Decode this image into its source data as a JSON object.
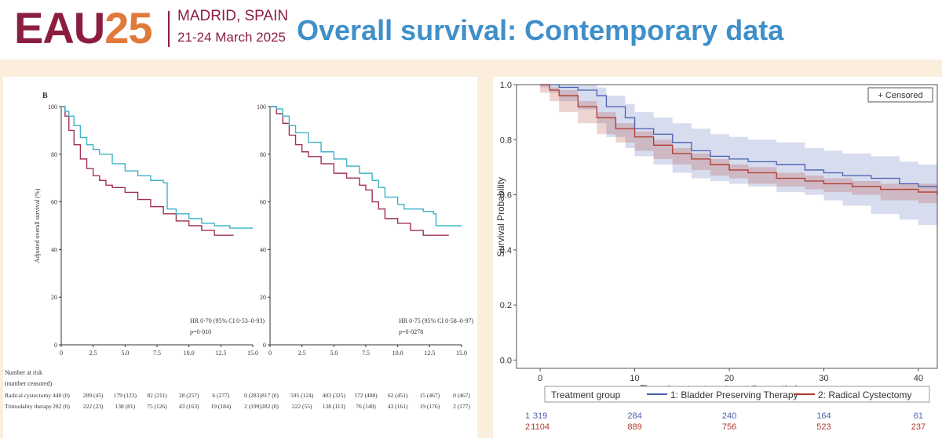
{
  "header": {
    "logo_prefix": "EAU",
    "logo_year": "25",
    "city": "MADRID, SPAIN",
    "dates": "21-24 March 2025",
    "title": "Overall survival: Contemporary data"
  },
  "colors": {
    "eau_maroon": "#8b1e3f",
    "eau_orange": "#e07a3a",
    "title_blue": "#3f8fc9",
    "background_beige": "#fbeedd",
    "series_teal": "#3fb3c8",
    "series_maroon": "#a0324f",
    "series_blue": "#4a5fb0",
    "series_red": "#b03a2e"
  },
  "chart_data": [
    {
      "type": "line",
      "panel_label": "B",
      "ylabel": "Adjusted overall survival (%)",
      "xlim": [
        0,
        15.0
      ],
      "ylim": [
        0,
        100
      ],
      "xticks": [
        "0",
        "2.5",
        "5.0",
        "7.5",
        "10.0",
        "12.5",
        "15.0"
      ],
      "yticks": [
        "0",
        "20",
        "40",
        "60",
        "80",
        "100"
      ],
      "annotation_hr": "HR 0·70 (95% CI 0·53–0·93)",
      "annotation_p": "p=0·010",
      "series": [
        {
          "name": "Radical cystectomy",
          "color": "#a0324f",
          "x": [
            0,
            0.3,
            0.6,
            1.0,
            1.5,
            2.0,
            2.5,
            3.0,
            3.5,
            4.0,
            5.0,
            6.0,
            7.0,
            8.0,
            9.0,
            10.0,
            11.0,
            12.0,
            13.5
          ],
          "y": [
            100,
            96,
            90,
            84,
            78,
            74,
            71,
            69,
            67,
            66,
            64,
            61,
            58,
            55,
            52,
            50,
            48,
            46,
            46
          ]
        },
        {
          "name": "Trimodality therapy",
          "color": "#3fb3c8",
          "x": [
            0,
            0.3,
            0.6,
            1.0,
            1.5,
            2.0,
            2.5,
            3.0,
            4.0,
            5.0,
            6.0,
            7.0,
            8.0,
            8.3,
            9.0,
            10.0,
            11.0,
            12.0,
            13.0,
            13.2,
            15.0
          ],
          "y": [
            100,
            98,
            96,
            92,
            87,
            84,
            82,
            80,
            76,
            73,
            71,
            69,
            68,
            57,
            55,
            53,
            51,
            50,
            50,
            49,
            49
          ]
        }
      ],
      "risk_table": {
        "header": "Number at risk",
        "subheader": "(number censored)",
        "rows": [
          {
            "label": "Radical cystectomy",
            "values": [
              "440 (0)",
              "289 (45)",
              "179 (123)",
              "82 (211)",
              "28 (257)",
              "6 (277)",
              "0 (283)"
            ]
          },
          {
            "label": "Trimodality therapy",
            "values": [
              "282 (0)",
              "222 (23)",
              "138 (81)",
              "75 (126)",
              "43 (163)",
              "19 (184)",
              "2 (199)"
            ]
          }
        ]
      }
    },
    {
      "type": "line",
      "xlim": [
        0,
        15.0
      ],
      "ylim": [
        0,
        100
      ],
      "xticks": [
        "0",
        "2.5",
        "5.0",
        "7.5",
        "10.0",
        "12.5",
        "15.0"
      ],
      "yticks": [
        "0",
        "20",
        "40",
        "60",
        "80",
        "100"
      ],
      "annotation_hr": "HR 0·75 (95% CI 0·58–0·97)",
      "annotation_p": "p=0·0278",
      "series": [
        {
          "name": "Radical cystectomy",
          "color": "#a0324f",
          "x": [
            0,
            0.5,
            1.0,
            1.5,
            2.0,
            2.5,
            3.0,
            4.0,
            5.0,
            6.0,
            7.0,
            7.5,
            8.0,
            8.5,
            9.0,
            10.0,
            11.0,
            12.0,
            13.0,
            14.0
          ],
          "y": [
            100,
            97,
            93,
            88,
            84,
            81,
            79,
            76,
            72,
            70,
            67,
            65,
            60,
            57,
            53,
            51,
            48,
            46,
            46,
            46
          ]
        },
        {
          "name": "Trimodality therapy",
          "color": "#3fb3c8",
          "x": [
            0,
            0.5,
            1.0,
            1.5,
            2.0,
            3.0,
            4.0,
            5.0,
            6.0,
            7.0,
            8.0,
            8.5,
            9.0,
            10.0,
            10.5,
            11.0,
            12.0,
            12.8,
            13.0,
            15.0
          ],
          "y": [
            100,
            99,
            96,
            92,
            89,
            85,
            81,
            78,
            75,
            72,
            69,
            66,
            62,
            59,
            57,
            57,
            56,
            55,
            50,
            50
          ]
        }
      ],
      "risk_table": {
        "rows": [
          {
            "label": "Radical cystectomy",
            "values": [
              "817 (0)",
              "595 (124)",
              "403 (325)",
              "172 (408)",
              "62 (451)",
              "15 (467)",
              "0 (467)"
            ]
          },
          {
            "label": "Trimodality therapy",
            "values": [
              "282 (0)",
              "222 (55)",
              "138 (113)",
              "76 (140)",
              "43 (161)",
              "19 (176)",
              "2 (177)"
            ]
          }
        ]
      }
    },
    {
      "type": "line",
      "xlabel": "Time since treatment start (in months)",
      "ylabel": "Survival Probability",
      "xlim": [
        -2.5,
        42
      ],
      "ylim": [
        -0.03,
        1.0
      ],
      "xticks": [
        "0",
        "10",
        "20",
        "30",
        "40"
      ],
      "yticks": [
        "0.0",
        "0.2",
        "0.4",
        "0.6",
        "0.8",
        "1.0"
      ],
      "legend_censored": "+ Censored",
      "legend_title": "Treatment group",
      "series": [
        {
          "name": "1: Bladder Preserving Therapy",
          "color": "#4a5fb0",
          "x": [
            0,
            1,
            2,
            4,
            6,
            7,
            9,
            10,
            12,
            14,
            16,
            18,
            20,
            22,
            25,
            28,
            30,
            32,
            35,
            38,
            40,
            42
          ],
          "y": [
            1.0,
            1.0,
            0.99,
            0.98,
            0.96,
            0.92,
            0.88,
            0.84,
            0.82,
            0.79,
            0.76,
            0.74,
            0.73,
            0.72,
            0.71,
            0.69,
            0.68,
            0.67,
            0.66,
            0.64,
            0.63,
            0.6
          ],
          "lower": [
            1.0,
            0.99,
            0.97,
            0.94,
            0.91,
            0.86,
            0.81,
            0.77,
            0.74,
            0.71,
            0.68,
            0.66,
            0.65,
            0.64,
            0.63,
            0.61,
            0.6,
            0.58,
            0.56,
            0.53,
            0.51,
            0.49
          ],
          "upper": [
            1.0,
            1.0,
            1.0,
            1.0,
            0.99,
            0.96,
            0.93,
            0.9,
            0.88,
            0.86,
            0.84,
            0.82,
            0.81,
            0.8,
            0.79,
            0.77,
            0.76,
            0.75,
            0.74,
            0.72,
            0.71,
            0.69
          ]
        },
        {
          "name": "2: Radical Cystectomy",
          "color": "#b03a2e",
          "x": [
            0,
            1,
            2,
            4,
            6,
            8,
            10,
            12,
            14,
            16,
            18,
            20,
            22,
            25,
            28,
            30,
            33,
            36,
            40,
            42
          ],
          "y": [
            1.0,
            0.98,
            0.96,
            0.92,
            0.88,
            0.84,
            0.81,
            0.78,
            0.75,
            0.73,
            0.71,
            0.69,
            0.68,
            0.66,
            0.65,
            0.64,
            0.63,
            0.62,
            0.61,
            0.6
          ],
          "lower": [
            1.0,
            0.97,
            0.94,
            0.9,
            0.86,
            0.82,
            0.79,
            0.76,
            0.73,
            0.71,
            0.69,
            0.67,
            0.66,
            0.64,
            0.63,
            0.62,
            0.61,
            0.6,
            0.58,
            0.57
          ],
          "upper": [
            1.0,
            0.99,
            0.98,
            0.94,
            0.9,
            0.86,
            0.83,
            0.8,
            0.77,
            0.75,
            0.73,
            0.71,
            0.7,
            0.68,
            0.67,
            0.66,
            0.65,
            0.64,
            0.64,
            0.63
          ]
        }
      ],
      "risk_table": {
        "rows": [
          {
            "label": "1",
            "values": [
              "319",
              "284",
              "240",
              "164",
              "61"
            ]
          },
          {
            "label": "2",
            "values": [
              "1104",
              "889",
              "756",
              "523",
              "237"
            ]
          }
        ]
      }
    }
  ]
}
